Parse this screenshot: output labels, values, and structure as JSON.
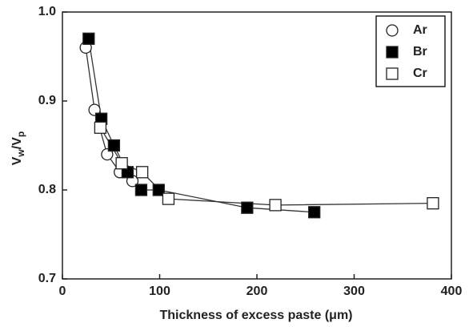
{
  "chart_data": {
    "type": "line",
    "xlabel": "Thickness of excess paste (μm)",
    "ylabel": [
      "V",
      "w",
      "/V",
      "p"
    ],
    "xlim": [
      0,
      400
    ],
    "ylim": [
      0.7,
      1.0
    ],
    "xticks": [
      0,
      100,
      200,
      300,
      400
    ],
    "yticks": [
      {
        "value": 0.7,
        "label": "0.7"
      },
      {
        "value": 0.8,
        "label": "0.8"
      },
      {
        "value": 0.9,
        "label": "0.9"
      },
      {
        "value": 1,
        "label": "1.0"
      }
    ],
    "legend": "upper right",
    "series": [
      {
        "name": "Ar",
        "marker": "circle",
        "color": "#ffffff",
        "x": [
          24,
          33,
          46,
          59,
          72
        ],
        "values": [
          0.96,
          0.89,
          0.84,
          0.82,
          0.81
        ]
      },
      {
        "name": "Br",
        "marker": "square",
        "color": "#000000",
        "x": [
          27,
          40,
          53,
          67,
          81,
          99,
          190,
          259
        ],
        "values": [
          0.97,
          0.88,
          0.85,
          0.82,
          0.8,
          0.8,
          0.78,
          0.775
        ]
      },
      {
        "name": "Cr",
        "marker": "square",
        "color": "#ffffff",
        "x": [
          39,
          61,
          82,
          109,
          219,
          381
        ],
        "values": [
          0.87,
          0.83,
          0.82,
          0.79,
          0.783,
          0.785
        ]
      }
    ]
  }
}
